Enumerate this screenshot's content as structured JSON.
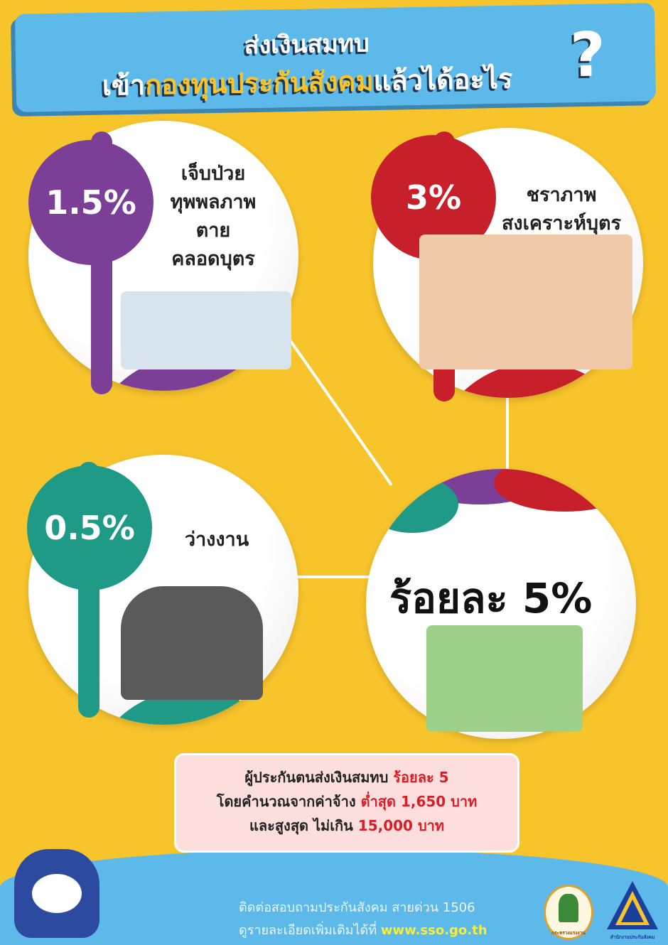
{
  "header": {
    "line1": "ส่งเงินสมทบ",
    "line2_pre": "เข้า",
    "line2_highlight": "กองทุนประกันสังคม",
    "line2_post": "แล้วได้อะไร",
    "question_mark": "?"
  },
  "sections": [
    {
      "percent": "1.5%",
      "color": "#7B3F98",
      "lines": [
        "เจ็บป่วย",
        "ทุพพลภาพ",
        "ตาย",
        "คลอดบุตร"
      ]
    },
    {
      "percent": "3%",
      "color": "#C8202A",
      "lines": [
        "ชราภาพ",
        "สงเคราะห์บุตร"
      ]
    },
    {
      "percent": "0.5%",
      "color": "#1E9A87",
      "lines": [
        "ว่างงาน"
      ]
    }
  ],
  "total": {
    "label": "ร้อยละ 5%"
  },
  "info": {
    "l1": "ผู้ประกันตนส่งเงินสมทบ ",
    "l1_red": "ร้อยละ 5",
    "l2": "โดยคำนวณจากค่าจ้าง ",
    "l2_red": "ต่ำสุด 1,650 บาท",
    "l3": "และสูงสุด ไม่เกิน ",
    "l3_red": "15,000 บาท"
  },
  "footer": {
    "hotline": "ติดต่อสอบถามประกันสังคม สายด่วน  1506",
    "more": "ดูรายละเอียดเพิ่มเติมได้ที่ ",
    "url": "www.sso.go.th",
    "logo1_text": "กระทรวงแรงงาน",
    "logo2_text": "สำนักงานประกันสังคม"
  },
  "colors": {
    "background": "#F8C42C",
    "banner": "#5DB9EA",
    "accent_red": "#D81E28"
  }
}
